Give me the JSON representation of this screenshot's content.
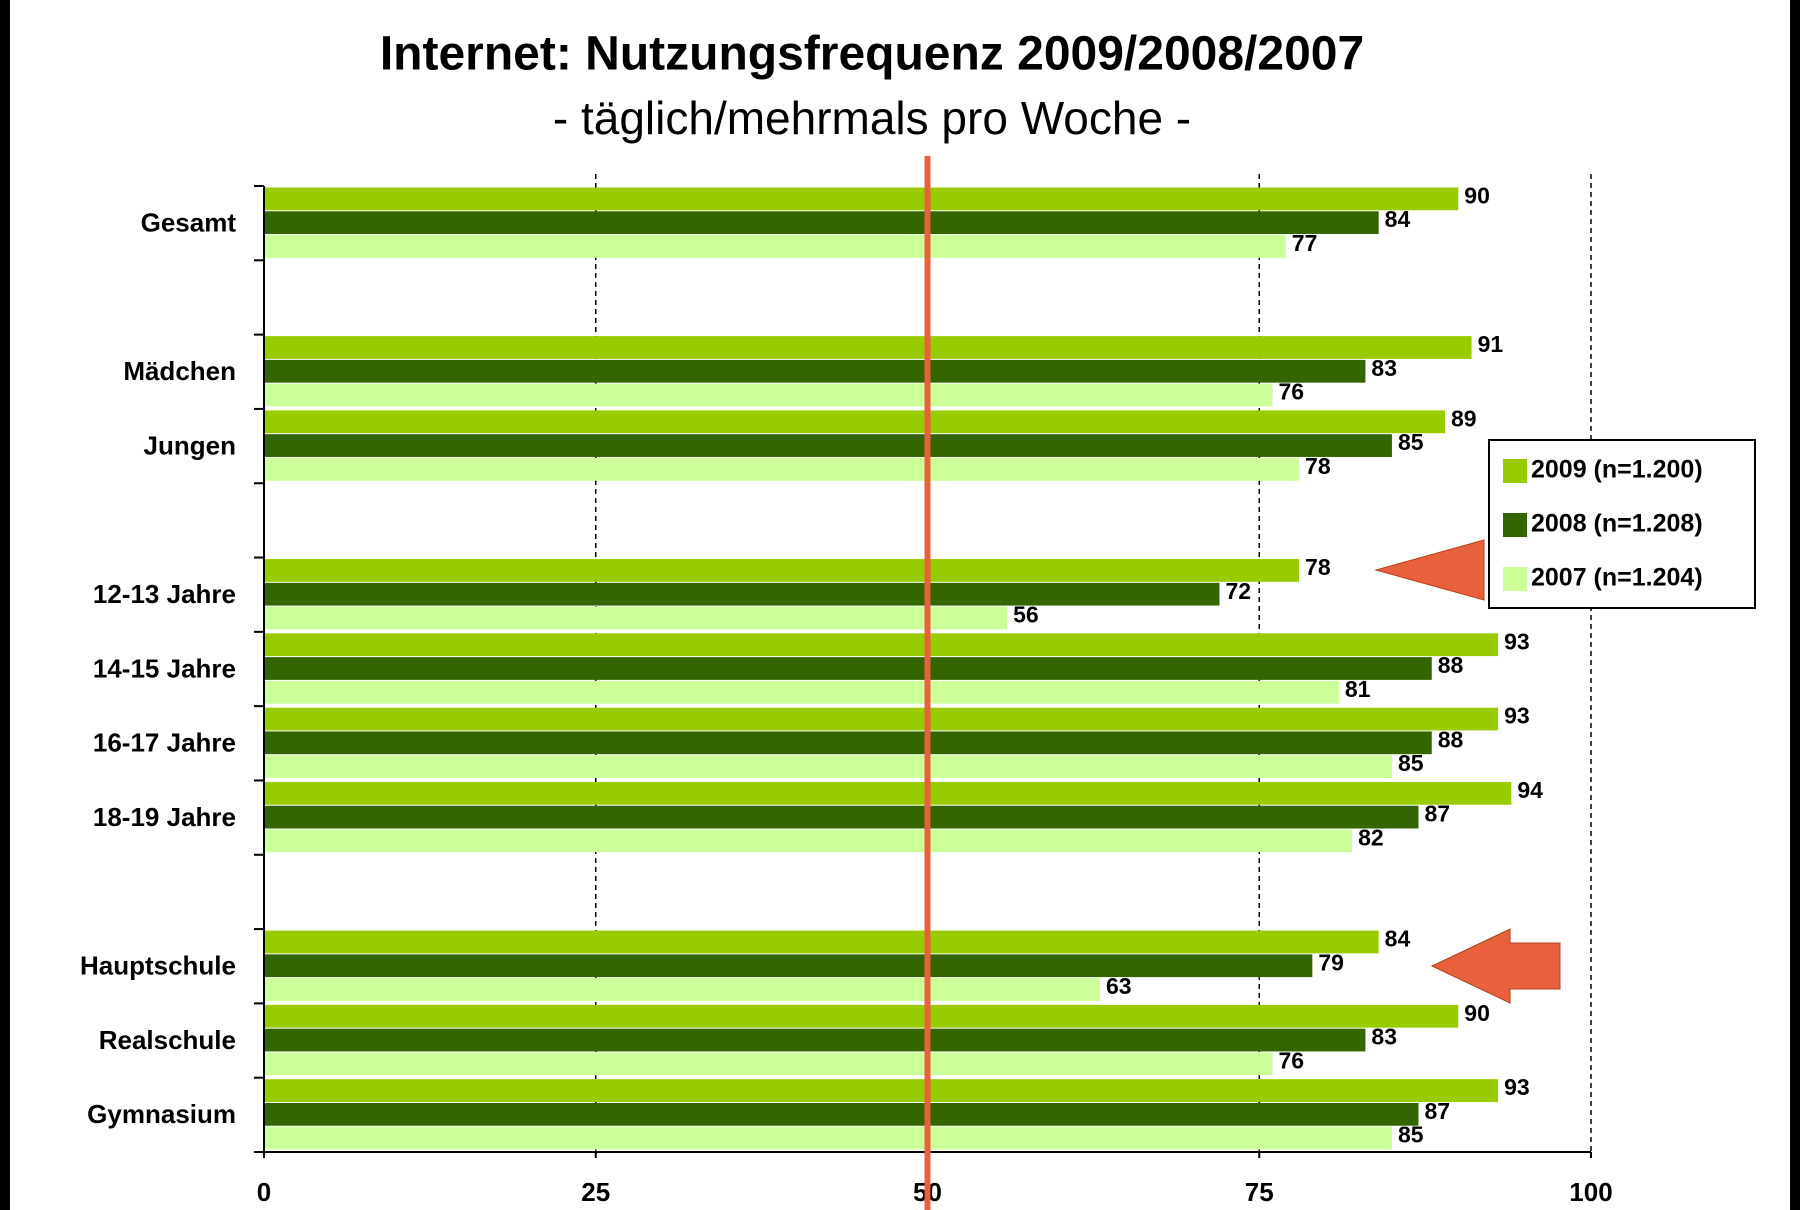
{
  "chart_data": {
    "type": "bar",
    "orientation": "horizontal",
    "title": "Internet: Nutzungsfrequenz 2009/2008/2007",
    "subtitle": "- täglich/mehrmals pro Woche -",
    "categories": [
      "Gesamt",
      null,
      "Mädchen",
      "Jungen",
      null,
      "12-13 Jahre",
      "14-15 Jahre",
      "16-17 Jahre",
      "18-19 Jahre",
      null,
      "Hauptschule",
      "Realschule",
      "Gymnasium"
    ],
    "series": [
      {
        "name": "2009 (n=1.200)",
        "color": "#99cc00",
        "values": [
          90,
          null,
          91,
          89,
          null,
          78,
          93,
          93,
          94,
          null,
          84,
          90,
          93
        ]
      },
      {
        "name": "2008 (n=1.208)",
        "color": "#336600",
        "values": [
          84,
          null,
          83,
          85,
          null,
          72,
          88,
          88,
          87,
          null,
          79,
          83,
          87
        ]
      },
      {
        "name": "2007 (n=1.204)",
        "color": "#ccff99",
        "values": [
          77,
          null,
          76,
          78,
          null,
          56,
          81,
          85,
          82,
          null,
          63,
          76,
          85
        ]
      }
    ],
    "xlim": [
      0,
      100
    ],
    "xticks": [
      0,
      25,
      50,
      75,
      100
    ],
    "grid": true,
    "reference_line": 50,
    "reference_color": "#e8603c",
    "legend": "right"
  }
}
